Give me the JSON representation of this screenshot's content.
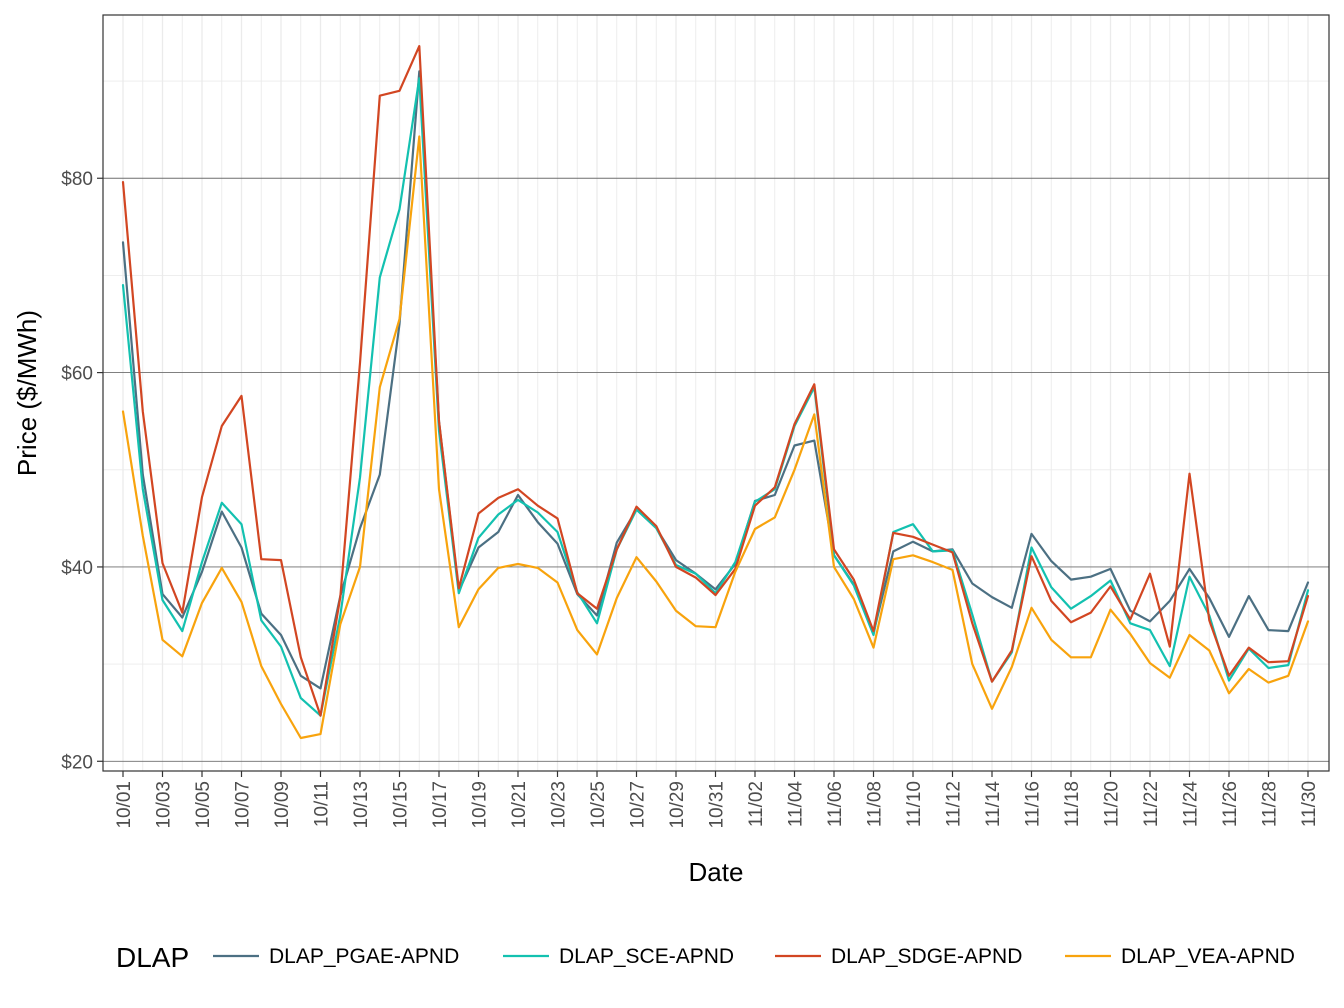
{
  "chart_data": {
    "type": "line",
    "xlabel": "Date",
    "ylabel": "Price ($/MWh)",
    "ylim": [
      19,
      96.8
    ],
    "y_ticks": [
      20,
      40,
      60,
      80
    ],
    "y_tick_labels": [
      "$20",
      "$40",
      "$60",
      "$80"
    ],
    "y_minor_ticks": [
      30,
      50,
      70,
      90
    ],
    "grid": true,
    "legend_title": "DLAP",
    "legend_position": "bottom",
    "x_tick_labels": [
      "10/01",
      "10/03",
      "10/05",
      "10/07",
      "10/09",
      "10/11",
      "10/13",
      "10/15",
      "10/17",
      "10/19",
      "10/21",
      "10/23",
      "10/25",
      "10/27",
      "10/29",
      "10/31",
      "11/02",
      "11/04",
      "11/06",
      "11/08",
      "11/10",
      "11/12",
      "11/14",
      "11/16",
      "11/18",
      "11/20",
      "11/22",
      "11/24",
      "11/26",
      "11/28",
      "11/30"
    ],
    "x": [
      "10/01",
      "10/02",
      "10/03",
      "10/04",
      "10/05",
      "10/06",
      "10/07",
      "10/08",
      "10/09",
      "10/10",
      "10/11",
      "10/12",
      "10/13",
      "10/14",
      "10/15",
      "10/16",
      "10/17",
      "10/18",
      "10/19",
      "10/20",
      "10/21",
      "10/22",
      "10/23",
      "10/24",
      "10/25",
      "10/26",
      "10/27",
      "10/28",
      "10/29",
      "10/30",
      "10/31",
      "11/01",
      "11/02",
      "11/03",
      "11/04",
      "11/05",
      "11/06",
      "11/07",
      "11/08",
      "11/09",
      "11/10",
      "11/11",
      "11/12",
      "11/13",
      "11/14",
      "11/15",
      "11/16",
      "11/17",
      "11/18",
      "11/19",
      "11/20",
      "11/21",
      "11/22",
      "11/23",
      "11/24",
      "11/25",
      "11/26",
      "11/27",
      "11/28",
      "11/29",
      "11/30"
    ],
    "series": [
      {
        "name": "DLAP_PGAE-APND",
        "color": "#4c7083",
        "values": [
          73.4,
          49.5,
          37.2,
          34.8,
          39.5,
          45.7,
          42.0,
          35.2,
          33.0,
          28.8,
          27.5,
          37.0,
          44.0,
          49.5,
          65.0,
          91.0,
          55.0,
          37.5,
          42.0,
          43.6,
          47.4,
          44.6,
          42.4,
          37.2,
          35.0,
          42.5,
          45.9,
          44.0,
          40.7,
          39.3,
          37.7,
          40.3,
          46.8,
          47.4,
          52.5,
          53.0,
          41.2,
          38.2,
          33.2,
          41.6,
          42.6,
          41.6,
          41.8,
          38.3,
          36.9,
          35.8,
          43.4,
          40.6,
          38.7,
          39.0,
          39.8,
          35.5,
          34.4,
          36.5,
          39.8,
          36.8,
          32.8,
          37.0,
          33.5,
          33.4,
          38.4
        ]
      },
      {
        "name": "DLAP_SCE-APND",
        "color": "#13c1b0",
        "values": [
          69.0,
          48.0,
          36.6,
          33.4,
          40.5,
          46.6,
          44.4,
          34.5,
          31.8,
          26.5,
          24.7,
          35.0,
          49.2,
          69.8,
          76.8,
          90.3,
          54.0,
          37.3,
          43.0,
          45.4,
          46.9,
          45.6,
          43.6,
          37.4,
          34.2,
          41.8,
          45.9,
          44.0,
          40.2,
          39.3,
          37.3,
          40.5,
          46.7,
          48.0,
          54.5,
          58.5,
          41.2,
          38.1,
          33.0,
          43.6,
          44.4,
          41.6,
          41.7,
          35.1,
          28.2,
          31.2,
          42.0,
          37.9,
          35.7,
          37.0,
          38.6,
          34.2,
          33.5,
          29.8,
          39.0,
          35.0,
          28.3,
          31.6,
          29.6,
          29.9,
          37.6
        ]
      },
      {
        "name": "DLAP_SDGE-APND",
        "color": "#d24622",
        "values": [
          79.6,
          56.0,
          40.4,
          35.3,
          47.2,
          54.5,
          57.6,
          40.8,
          40.7,
          30.7,
          24.7,
          36.9,
          61.0,
          88.5,
          89.0,
          93.6,
          55.0,
          37.8,
          45.5,
          47.1,
          48.0,
          46.3,
          45.0,
          37.3,
          35.7,
          41.8,
          46.2,
          44.2,
          40.0,
          38.9,
          37.1,
          39.8,
          46.3,
          48.2,
          54.7,
          58.8,
          41.8,
          38.7,
          33.4,
          43.5,
          43.1,
          42.3,
          41.5,
          34.2,
          28.2,
          31.4,
          41.1,
          36.5,
          34.3,
          35.3,
          38.0,
          34.6,
          39.3,
          31.8,
          49.6,
          34.5,
          28.8,
          31.7,
          30.2,
          30.3,
          37.0
        ]
      },
      {
        "name": "DLAP_VEA-APND",
        "color": "#f8a30d",
        "values": [
          56.0,
          43.2,
          32.5,
          30.8,
          36.3,
          39.9,
          36.4,
          29.8,
          25.9,
          22.4,
          22.8,
          34.1,
          40.0,
          58.5,
          65.5,
          84.3,
          48.0,
          33.8,
          37.7,
          39.9,
          40.3,
          39.9,
          38.4,
          33.5,
          31.0,
          36.8,
          41.0,
          38.5,
          35.5,
          33.9,
          33.8,
          39.5,
          43.9,
          45.1,
          50.0,
          55.7,
          40.0,
          36.7,
          31.7,
          40.8,
          41.2,
          40.5,
          39.7,
          30.0,
          25.4,
          29.7,
          35.8,
          32.5,
          30.7,
          30.7,
          35.6,
          33.1,
          30.1,
          28.6,
          33.0,
          31.4,
          27.0,
          29.5,
          28.1,
          28.8,
          34.4
        ]
      }
    ]
  }
}
